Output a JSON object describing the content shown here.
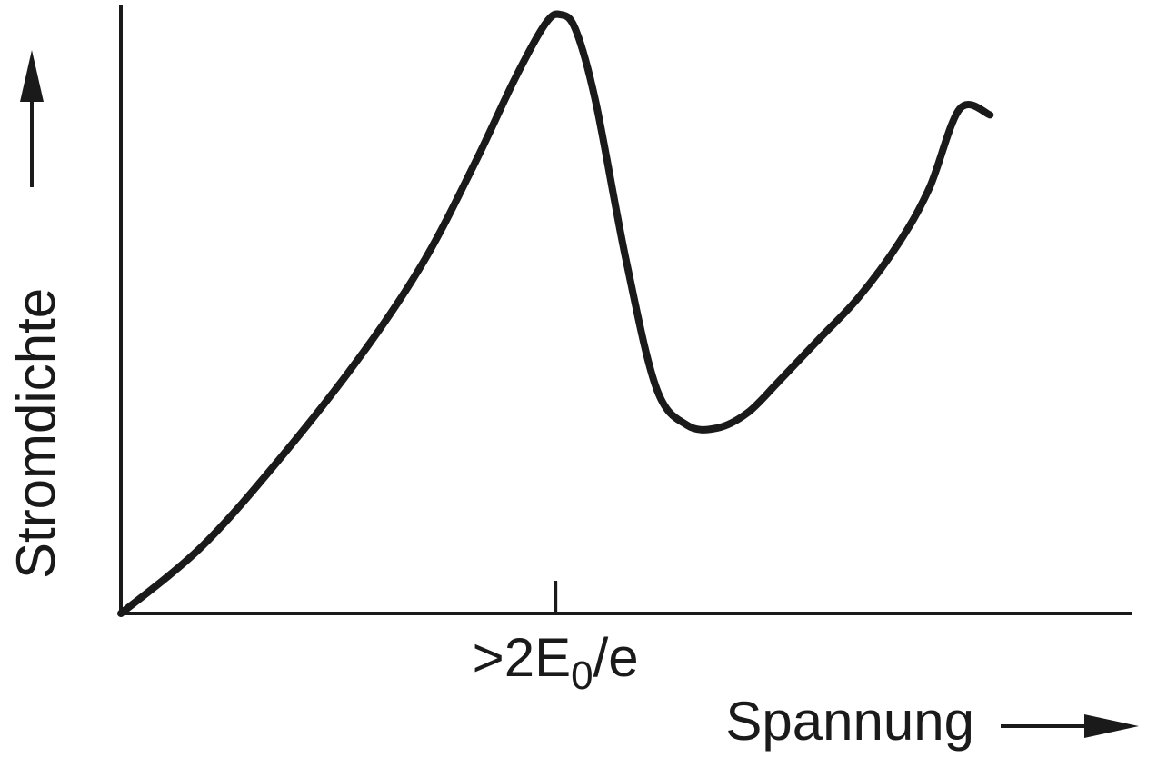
{
  "chart_data": {
    "type": "line",
    "title": "",
    "xlabel": "Spannung",
    "ylabel": "Stromdichte",
    "x_ticks": [
      {
        "x": 0.43,
        "label": ">2E",
        "label_subscript": "0",
        "label_suffix": "/e"
      }
    ],
    "y_ticks": [],
    "grid": false,
    "legend": "none",
    "xlim": [
      0,
      1
    ],
    "ylim": [
      0,
      1
    ],
    "series": [
      {
        "color": "#1a1a1a",
        "x": [
          0.0,
          0.08,
          0.16,
          0.24,
          0.3,
          0.35,
          0.39,
          0.42,
          0.435,
          0.45,
          0.47,
          0.5,
          0.53,
          0.56,
          0.59,
          0.62,
          0.65,
          0.69,
          0.73,
          0.77,
          0.8,
          0.83,
          0.86
        ],
        "y": [
          0.0,
          0.11,
          0.26,
          0.43,
          0.58,
          0.74,
          0.88,
          0.97,
          0.985,
          0.96,
          0.84,
          0.58,
          0.37,
          0.31,
          0.305,
          0.33,
          0.38,
          0.45,
          0.52,
          0.61,
          0.7,
          0.83,
          0.82
        ]
      }
    ],
    "axis_arrows": true,
    "axis_color": "#1a1a1a"
  }
}
